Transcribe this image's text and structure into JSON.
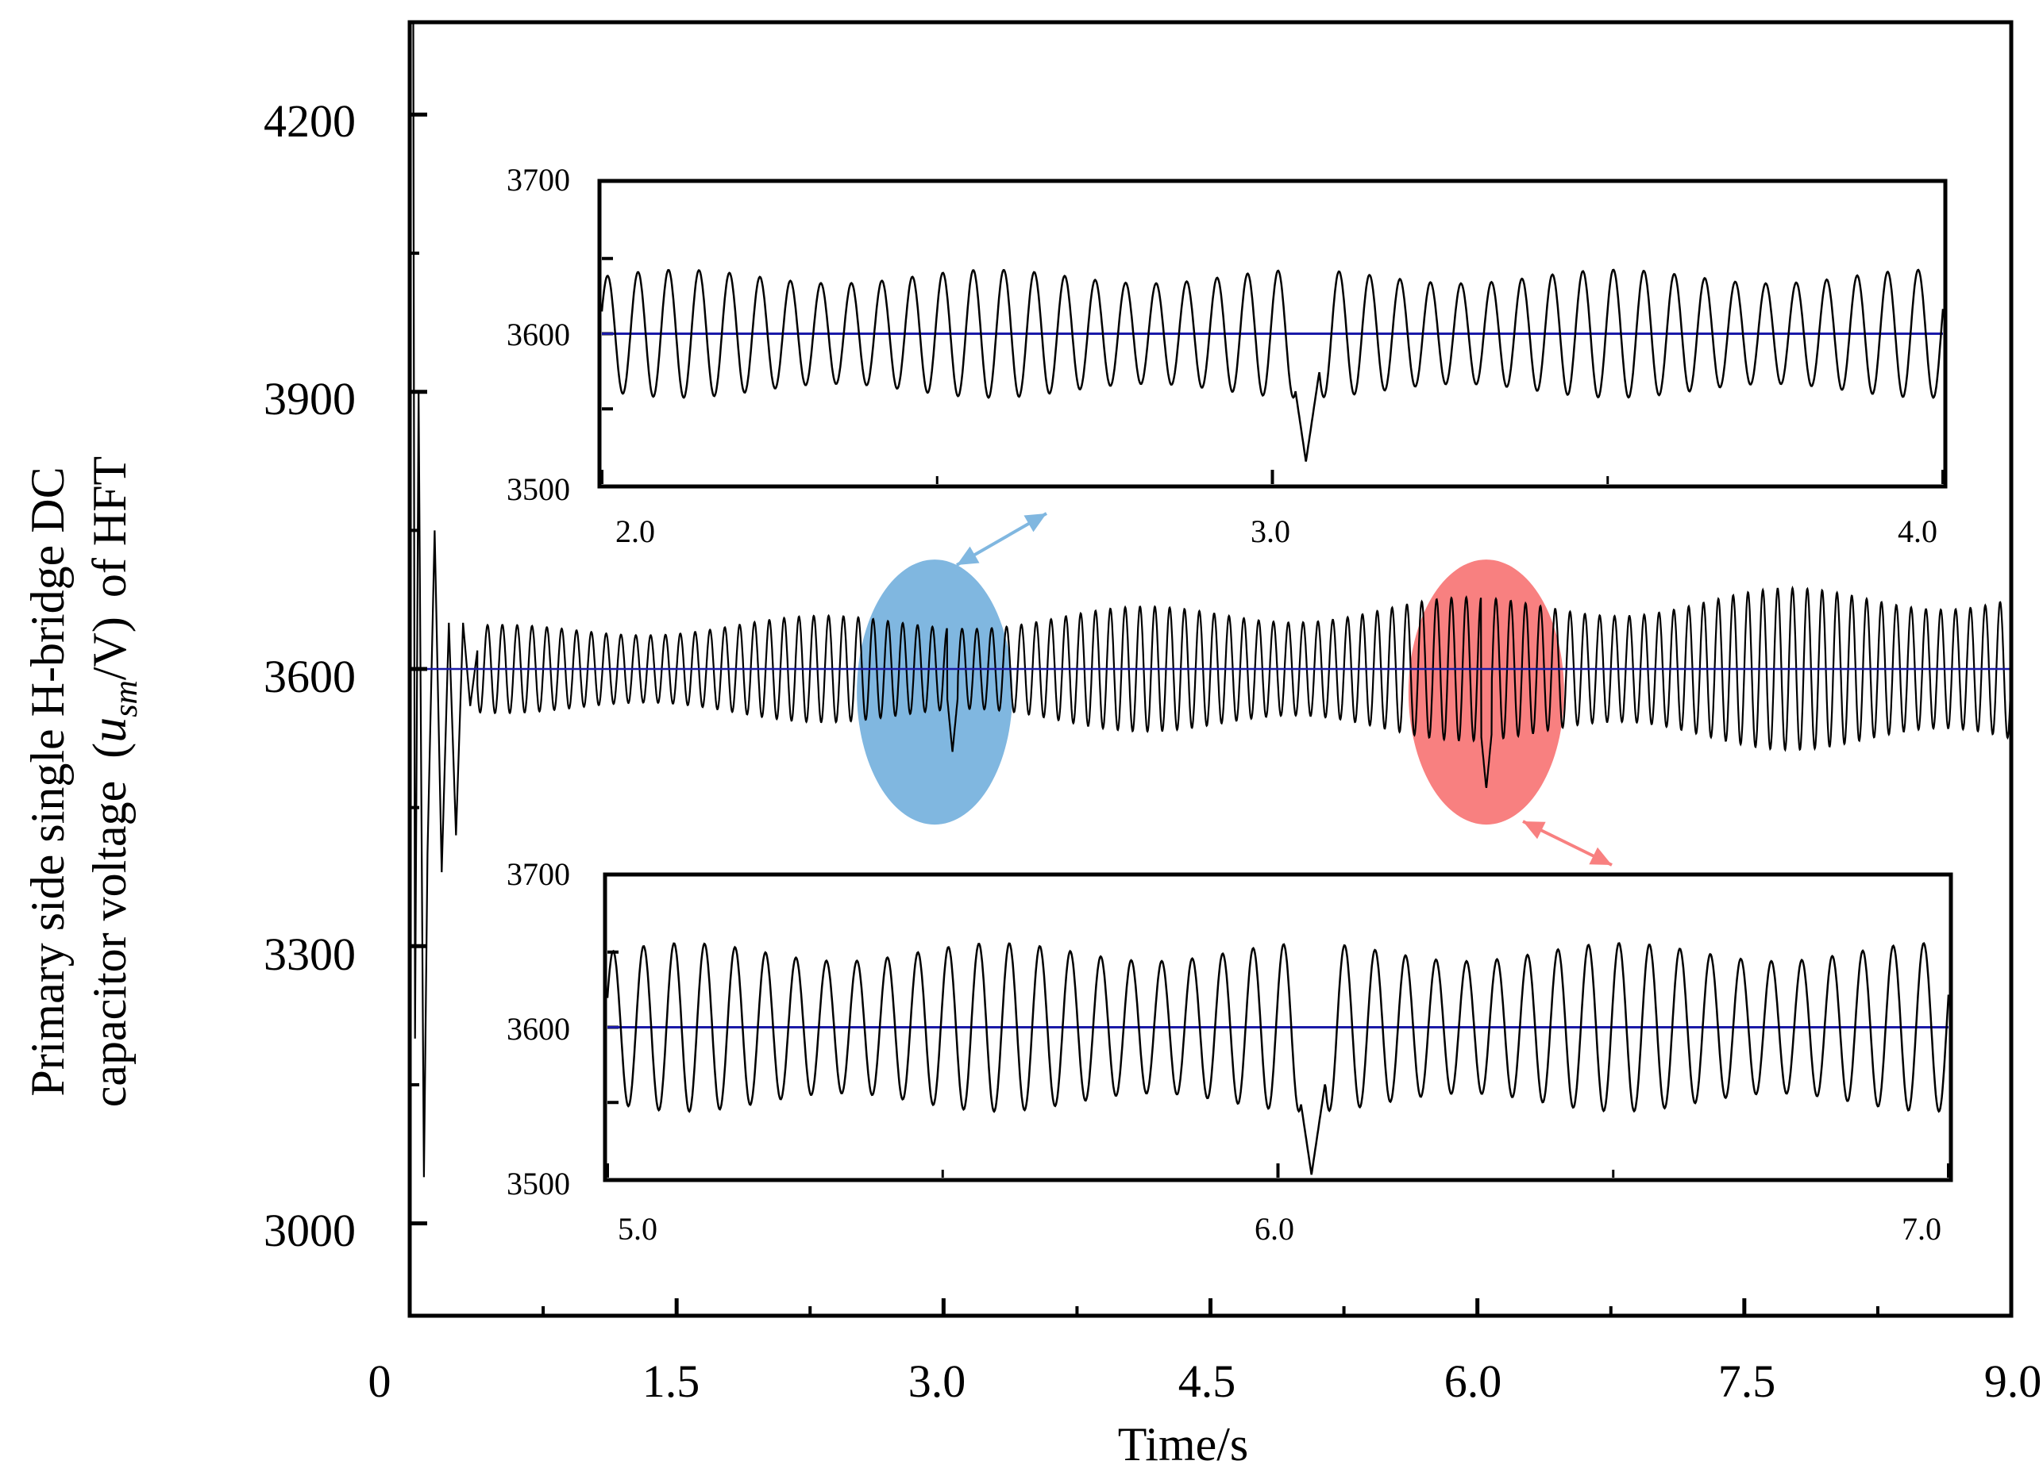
{
  "chart_data": {
    "type": "line",
    "xlabel": "Time/s",
    "ylabel": {
      "line1": "Primary side single H-bridge DC",
      "line2_prefix": "capacitor voltage",
      "var_main": "u",
      "var_sub": "sm",
      "unit": "/V)",
      "suffix": "of HFT"
    },
    "xlim": [
      0,
      9.0
    ],
    "ylim": [
      2900,
      4300
    ],
    "x_ticks": [
      "0",
      "1.5",
      "3.0",
      "4.5",
      "6.0",
      "7.5",
      "9.0"
    ],
    "x_tick_values": [
      0,
      1.5,
      3.0,
      4.5,
      6.0,
      7.5,
      9.0
    ],
    "y_ticks": [
      "3000",
      "3300",
      "3600",
      "3900",
      "4200"
    ],
    "y_tick_values": [
      3000,
      3300,
      3600,
      3900,
      4200
    ],
    "reference_value": 3600,
    "series": [
      {
        "name": "capacitor voltage",
        "color": "#000000",
        "startup": [
          [
            0.02,
            4300
          ],
          [
            0.03,
            3200
          ],
          [
            0.05,
            3900
          ],
          [
            0.08,
            3050
          ],
          [
            0.1,
            3400
          ],
          [
            0.14,
            3750
          ],
          [
            0.18,
            3380
          ],
          [
            0.22,
            3650
          ],
          [
            0.26,
            3420
          ],
          [
            0.3,
            3650
          ],
          [
            0.34,
            3560
          ],
          [
            0.38,
            3620
          ]
        ],
        "steady_amplitude_start": 40,
        "steady_amplitude_end": 80,
        "steady_frequency_hz": 12,
        "disturbances": [
          {
            "t": 3.05,
            "min": 3510
          },
          {
            "t": 6.05,
            "min": 3470
          }
        ]
      },
      {
        "name": "reference",
        "color": "#1a1aa8",
        "values": [
          3600,
          3600
        ]
      }
    ],
    "highlights": [
      {
        "name": "blue-ellipse",
        "color": "#80b7e0",
        "center": [
          2.95,
          3575
        ],
        "arrow_color": "#80b7e0"
      },
      {
        "name": "red-ellipse",
        "color": "#f88080",
        "center": [
          6.05,
          3575
        ],
        "arrow_color": "#f88080"
      }
    ],
    "insets": [
      {
        "name": "inset-top",
        "xlim": [
          2.0,
          4.0
        ],
        "ylim": [
          3500,
          3700
        ],
        "x_ticks": [
          "2.0",
          "3.0",
          "4.0"
        ],
        "x_tick_values": [
          2.0,
          3.0,
          4.0
        ],
        "y_ticks": [
          "3500",
          "3600",
          "3700"
        ],
        "y_tick_values": [
          3500,
          3600,
          3700
        ],
        "cycles": 44,
        "amplitude": 38,
        "disturbance": {
          "x": 3.05,
          "min": 3515
        }
      },
      {
        "name": "inset-bottom",
        "xlim": [
          5.0,
          7.0
        ],
        "ylim": [
          3500,
          3700
        ],
        "x_ticks": [
          "5.0",
          "6.0",
          "7.0"
        ],
        "x_tick_values": [
          5.0,
          6.0,
          7.0
        ],
        "y_ticks": [
          "3500",
          "3600",
          "3700"
        ],
        "y_tick_values": [
          3500,
          3600,
          3700
        ],
        "cycles": 44,
        "amplitude": 50,
        "disturbance": {
          "x": 6.05,
          "min": 3502
        }
      }
    ]
  }
}
